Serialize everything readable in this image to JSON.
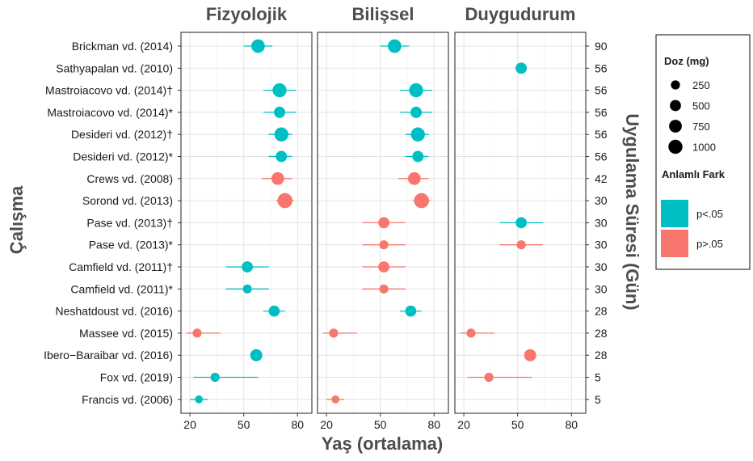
{
  "chart_data": {
    "type": "scatter",
    "facets": [
      "Fizyolojik",
      "Bilişsel",
      "Duygudurum"
    ],
    "xlabel": "Yaş (ortalama)",
    "ylabel": "Çalışma",
    "ylabel_right": "Uygulama Süresi (Gün)",
    "xlim": [
      15,
      88
    ],
    "xticks": [
      20,
      50,
      80
    ],
    "grid": true,
    "colors": {
      "significant": "#00bfc4",
      "nonsignificant": "#f8766d"
    },
    "studies": [
      {
        "label": "Brickman vd. (2014)",
        "days": "90",
        "age": 58,
        "sd": [
          50,
          66
        ],
        "dose": 900,
        "results": [
          "p<.05",
          "p<.05",
          null
        ]
      },
      {
        "label": "Sathyapalan vd. (2010)",
        "days": "56",
        "age": 52,
        "sd": null,
        "dose": 520,
        "results": [
          null,
          null,
          "p<.05"
        ]
      },
      {
        "label": "Mastroiacovo vd. (2014)†",
        "days": "56",
        "age": 70,
        "sd": [
          61,
          79
        ],
        "dose": 993,
        "results": [
          "p<.05",
          "p<.05",
          null
        ]
      },
      {
        "label": "Mastroiacovo vd. (2014)*",
        "days": "56",
        "age": 70,
        "sd": [
          61,
          79
        ],
        "dose": 520,
        "results": [
          "p<.05",
          "p<.05",
          null
        ]
      },
      {
        "label": "Desideri vd. (2012)†",
        "days": "56",
        "age": 71,
        "sd": [
          64,
          77
        ],
        "dose": 990,
        "results": [
          "p<.05",
          "p<.05",
          null
        ]
      },
      {
        "label": "Desideri vd. (2012)*",
        "days": "56",
        "age": 71,
        "sd": [
          64,
          77
        ],
        "dose": 520,
        "results": [
          "p<.05",
          "p<.05",
          null
        ]
      },
      {
        "label": "Crews vd. (2008)",
        "days": "42",
        "age": 69,
        "sd": [
          60,
          77
        ],
        "dose": 754,
        "results": [
          "p>.05",
          "p>.05",
          null
        ]
      },
      {
        "label": "Sorond vd. (2013)",
        "days": "30",
        "age": 73,
        "sd": [
          68,
          78
        ],
        "dose": 1200,
        "results": [
          "p>.05",
          "p>.05",
          null
        ]
      },
      {
        "label": "Pase vd. (2013)†",
        "days": "30",
        "age": 52,
        "sd": [
          40,
          64
        ],
        "dose": 500,
        "results": [
          null,
          "p>.05",
          "p<.05"
        ]
      },
      {
        "label": "Pase vd. (2013)*",
        "days": "30",
        "age": 52,
        "sd": [
          40,
          64
        ],
        "dose": 250,
        "results": [
          null,
          "p>.05",
          "p>.05"
        ]
      },
      {
        "label": "Camfield vd. (2011)†",
        "days": "30",
        "age": 52,
        "sd": [
          40,
          64
        ],
        "dose": 500,
        "results": [
          "p<.05",
          "p>.05",
          null
        ]
      },
      {
        "label": "Camfield vd. (2011)*",
        "days": "30",
        "age": 52,
        "sd": [
          40,
          64
        ],
        "dose": 250,
        "results": [
          "p<.05",
          "p>.05",
          null
        ]
      },
      {
        "label": "Neshatdoust vd. (2016)",
        "days": "28",
        "age": 67,
        "sd": [
          61,
          73
        ],
        "dose": 494,
        "results": [
          "p<.05",
          "p<.05",
          null
        ]
      },
      {
        "label": "Massee vd. (2015)",
        "days": "28",
        "age": 24,
        "sd": [
          18,
          37
        ],
        "dose": 250,
        "results": [
          "p>.05",
          "p>.05",
          "p>.05"
        ]
      },
      {
        "label": "Ibero−Baraibar vd. (2016)",
        "days": "28",
        "age": 57,
        "sd": null,
        "dose": 645,
        "results": [
          "p<.05",
          null,
          "p>.05"
        ]
      },
      {
        "label": "Fox vd. (2019)",
        "days": "5",
        "age": 34,
        "sd": [
          22,
          58
        ],
        "dose": 250,
        "results": [
          "p<.05",
          null,
          "p>.05"
        ]
      },
      {
        "label": "Francis vd. (2006)",
        "days": "5",
        "age": 25,
        "sd": [
          20,
          30
        ],
        "dose": 150,
        "results": [
          "p<.05",
          "p>.05",
          null
        ]
      }
    ],
    "legend": {
      "position": "right",
      "dose_title": "Doz (mg)",
      "dose_levels": [
        250,
        500,
        750,
        1000
      ],
      "dose_labels": [
        "250",
        "500",
        "750",
        "1000"
      ],
      "fill_title": "Anlamlı Fark",
      "fill_levels": [
        "p<.05",
        "p>.05"
      ]
    }
  }
}
